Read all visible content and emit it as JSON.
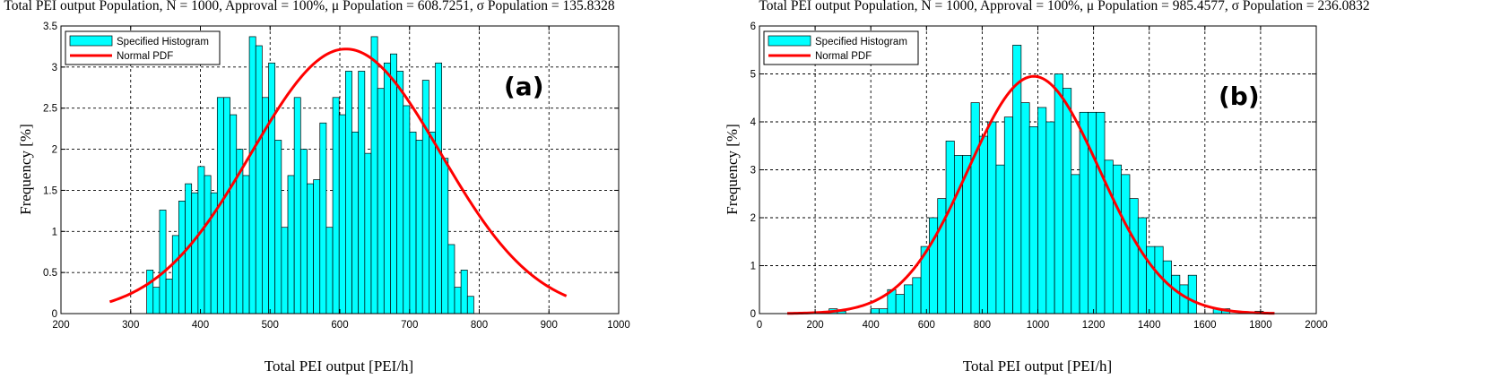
{
  "chart_data": [
    {
      "type": "bar",
      "title": "Total PEI output Population, N = 1000, Approval = 100%, μ Population = 608.7251, σ Population = 135.8328",
      "xlabel": "Total PEI output [PEI/h]",
      "ylabel": "Frequency [%]",
      "xlim": [
        200,
        1000
      ],
      "ylim": [
        0,
        3.5
      ],
      "xticks": [
        200,
        300,
        400,
        500,
        600,
        700,
        800,
        900,
        1000
      ],
      "yticks": [
        0,
        0.5,
        1,
        1.5,
        2,
        2.5,
        3,
        3.5
      ],
      "xtick_labels": [
        "200",
        "300",
        "400",
        "500",
        "600",
        "700",
        "800",
        "900",
        "1000"
      ],
      "ytick_labels": [
        "0",
        "0.5",
        "1",
        "1.5",
        "2",
        "2.5",
        "3",
        "3.5"
      ],
      "grid": true,
      "legend": {
        "position": "top-left",
        "entries": [
          "Specified Histogram",
          "Normal PDF"
        ]
      },
      "annotation": "(a)",
      "bin_start": 323,
      "bin_width": 9.2,
      "series": [
        {
          "name": "Specified Histogram",
          "type": "histogram",
          "values": [
            0.53,
            0.32,
            1.26,
            0.42,
            0.95,
            1.37,
            1.58,
            1.47,
            1.79,
            1.68,
            1.47,
            2.63,
            2.63,
            2.42,
            2.0,
            1.68,
            3.37,
            3.26,
            2.63,
            3.05,
            2.11,
            1.05,
            1.68,
            2.63,
            2.0,
            1.58,
            1.63,
            2.32,
            1.05,
            2.63,
            2.42,
            2.95,
            2.21,
            2.95,
            1.95,
            3.37,
            2.74,
            3.05,
            3.16,
            2.95,
            2.53,
            2.21,
            2.11,
            2.84,
            2.21,
            3.05,
            1.89,
            0.84,
            0.32,
            0.53,
            0.21
          ]
        },
        {
          "name": "Normal PDF",
          "type": "line",
          "mu": 608.7251,
          "sigma": 135.8328,
          "peak": 3.22,
          "x_range": [
            270,
            925
          ]
        }
      ]
    },
    {
      "type": "bar",
      "title": "Total PEI output Population, N = 1000, Approval = 100%, μ Population = 985.4577, σ Population = 236.0832",
      "xlabel": "Total PEI output [PEI/h]",
      "ylabel": "Frequency [%]",
      "xlim": [
        0,
        2000
      ],
      "ylim": [
        0,
        6
      ],
      "xticks": [
        0,
        200,
        400,
        600,
        800,
        1000,
        1200,
        1400,
        1600,
        1800,
        2000
      ],
      "yticks": [
        0,
        1,
        2,
        3,
        4,
        5,
        6
      ],
      "xtick_labels": [
        "0",
        "200",
        "400",
        "600",
        "800",
        "1000",
        "1200",
        "1400",
        "1600",
        "1800",
        "2000"
      ],
      "ytick_labels": [
        "0",
        "1",
        "2",
        "3",
        "4",
        "5",
        "6"
      ],
      "grid": true,
      "legend": {
        "position": "top-left",
        "entries": [
          "Specified Histogram",
          "Normal PDF"
        ]
      },
      "annotation": "(b)",
      "bin_start": 250,
      "bin_width": 30,
      "series": [
        {
          "name": "Specified Histogram",
          "type": "histogram",
          "values": [
            0.1,
            0.05,
            0,
            0,
            0,
            0.1,
            0.1,
            0.5,
            0.4,
            0.6,
            0.75,
            1.4,
            2.0,
            2.4,
            3.6,
            3.3,
            3.3,
            4.4,
            3.7,
            4.0,
            3.1,
            4.1,
            5.6,
            4.4,
            3.9,
            4.3,
            4.0,
            5.0,
            4.7,
            2.9,
            4.2,
            4.2,
            4.2,
            3.2,
            3.1,
            2.9,
            2.4,
            2.0,
            1.4,
            1.4,
            1.1,
            0.8,
            0.6,
            0.8,
            0,
            0,
            0.1,
            0.1,
            0,
            0,
            0,
            0.05
          ]
        },
        {
          "name": "Normal PDF",
          "type": "line",
          "mu": 985.4577,
          "sigma": 236.0832,
          "peak": 4.95,
          "x_range": [
            100,
            1850
          ]
        }
      ]
    }
  ]
}
